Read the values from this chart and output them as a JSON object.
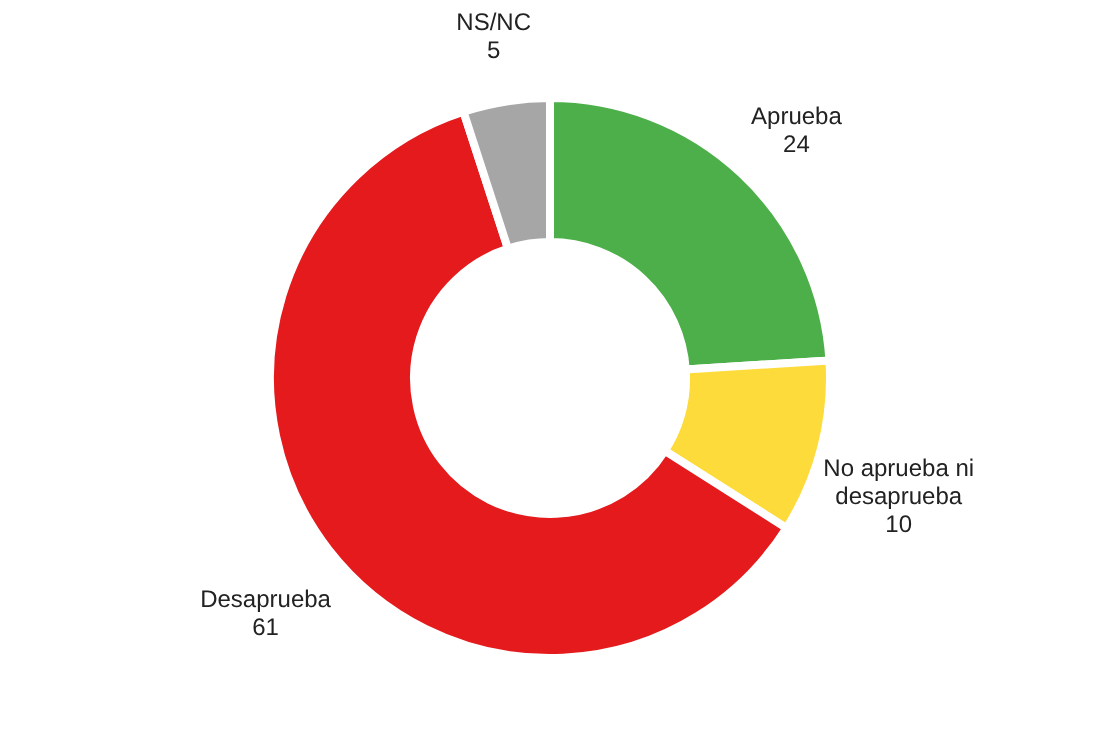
{
  "chart_data": {
    "type": "donut",
    "categories": [
      "Aprueba",
      "No aprueba ni desaprueba",
      "Desaprueba",
      "NS/NC"
    ],
    "values": [
      24,
      10,
      61,
      5
    ],
    "colors": [
      "#4daf4a",
      "#fddb3a",
      "#e41a1c",
      "#a6a6a6"
    ],
    "data_labels": true,
    "legend": false
  }
}
